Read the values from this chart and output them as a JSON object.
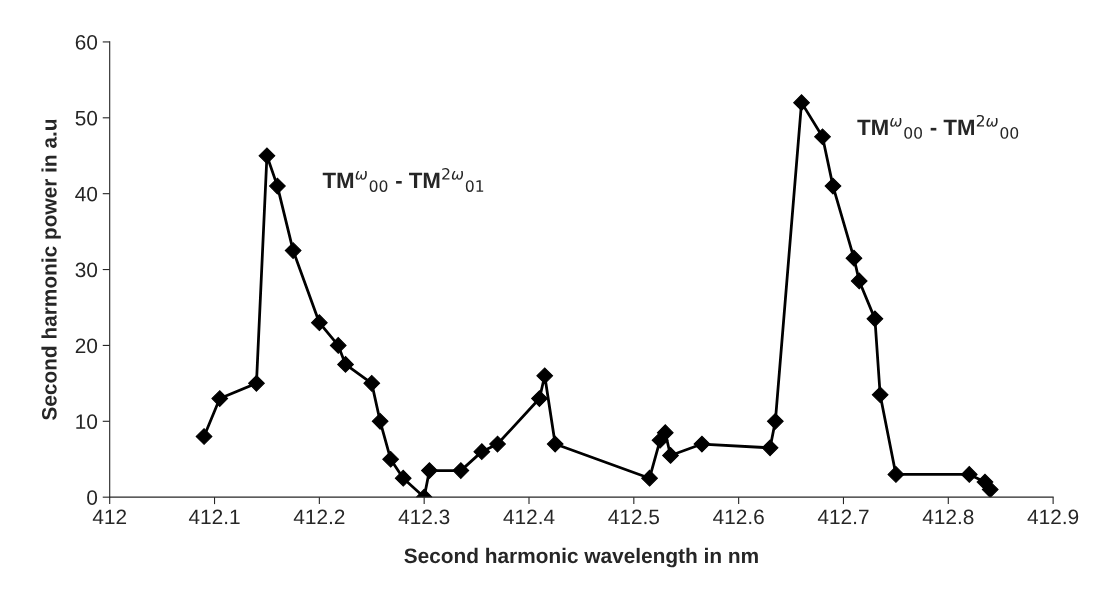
{
  "chart_data": {
    "type": "line",
    "xlabel": "Second harmonic wavelength in nm",
    "ylabel": "Second harmonic power in a.u",
    "x": [
      412.09,
      412.105,
      412.14,
      412.15,
      412.16,
      412.175,
      412.2,
      412.218,
      412.225,
      412.25,
      412.258,
      412.268,
      412.28,
      412.3,
      412.305,
      412.335,
      412.355,
      412.37,
      412.41,
      412.415,
      412.425,
      412.515,
      412.525,
      412.53,
      412.535,
      412.565,
      412.63,
      412.635,
      412.66,
      412.68,
      412.69,
      412.71,
      412.715,
      412.73,
      412.735,
      412.75,
      412.82,
      412.835,
      412.84
    ],
    "series": [
      {
        "color": "#000000",
        "values": [
          8,
          13,
          15,
          45,
          41,
          32.5,
          23,
          20,
          17.5,
          15,
          10,
          5,
          2.5,
          0,
          3.5,
          3.5,
          6,
          7,
          13,
          16,
          7,
          2.5,
          7.5,
          8.5,
          5.5,
          7,
          6.5,
          10,
          52,
          47.5,
          41,
          31.5,
          28.5,
          23.5,
          13.5,
          3,
          3,
          2,
          1
        ]
      }
    ],
    "marker": "diamond",
    "line_style": "solid",
    "grid": false,
    "legend": false,
    "xlim": [
      412,
      412.9
    ],
    "xticks": [
      412,
      412.1,
      412.2,
      412.3,
      412.4,
      412.5,
      412.6,
      412.7,
      412.8,
      412.9
    ],
    "ylim": [
      0,
      60
    ],
    "yticks": [
      0,
      10,
      20,
      30,
      40,
      50,
      60
    ],
    "annotations": [
      {
        "text": "TM$^{ω}$$_{00}$ - TM$^{2ω}$$_{01}$",
        "x": 412.15,
        "y": 45
      },
      {
        "text": "TM$^{ω}$$_{00}$ - TM$^{2ω}$$_{00}$",
        "x": 412.66,
        "y": 52
      }
    ]
  }
}
